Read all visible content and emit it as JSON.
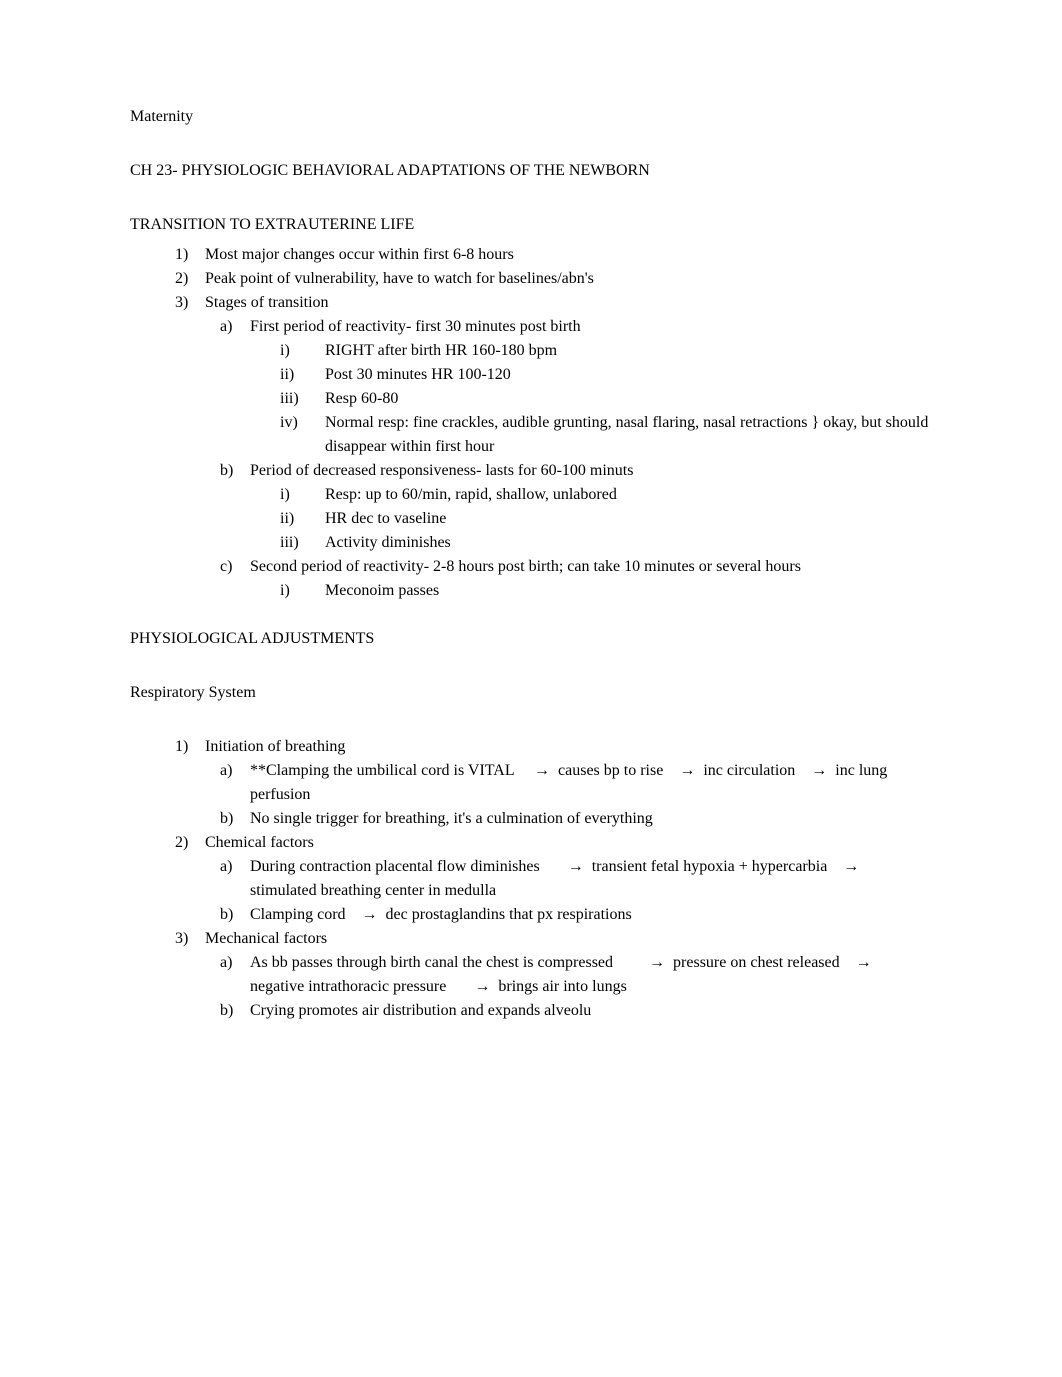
{
  "header": {
    "course": "Maternity",
    "chapter_title": "CH 23- PHYSIOLOGIC BEHAVIORAL ADAPTATIONS OF THE NEWBORN"
  },
  "section1": {
    "title": "TRANSITION TO EXTRAUTERINE LIFE",
    "items": [
      {
        "m": "1)",
        "t": "Most major changes occur within first 6-8 hours"
      },
      {
        "m": "2)",
        "t": "Peak point of vulnerability, have to watch for baselines/abn's"
      },
      {
        "m": "3)",
        "t": "Stages of transition"
      }
    ],
    "i3_sub": [
      {
        "m": "a)",
        "t": "First period of reactivity- first 30 minutes post birth"
      }
    ],
    "i3a_sub": [
      {
        "m": "i)",
        "t": "RIGHT after birth HR 160-180 bpm"
      },
      {
        "m": "ii)",
        "t": "Post 30 minutes HR 100-120"
      },
      {
        "m": "iii)",
        "t": "Resp 60-80"
      },
      {
        "m": "iv)",
        "t": "Normal resp: fine crackles, audible grunting, nasal flaring, nasal retractions } okay, but should disappear within first hour"
      }
    ],
    "i3_sub2": [
      {
        "m": "b)",
        "t": "Period of decreased responsiveness- lasts for 60-100 minuts"
      }
    ],
    "i3b_sub": [
      {
        "m": "i)",
        "t": "Resp: up to 60/min, rapid, shallow, unlabored"
      },
      {
        "m": "ii)",
        "t": "HR dec to vaseline"
      },
      {
        "m": "iii)",
        "t": "Activity diminishes"
      }
    ],
    "i3_sub3": [
      {
        "m": "c)",
        "t": "Second period of reactivity- 2-8 hours post birth; can take 10 minutes or several hours"
      }
    ],
    "i3c_sub": [
      {
        "m": "i)",
        "t": "Meconoim passes"
      }
    ]
  },
  "section2": {
    "title": "PHYSIOLOGICAL ADJUSTMENTS",
    "subtitle": "Respiratory System",
    "items": [
      {
        "m": "1)",
        "t": "Initiation of breathing"
      }
    ],
    "i1_sub_a_parts": {
      "m": "a)",
      "p1": "**Clamping the umbilical cord is VITAL",
      "p2": "causes bp to rise",
      "p3": "inc circulation",
      "p4": "inc lung perfusion"
    },
    "i1_sub_b": {
      "m": "b)",
      "t": "No single trigger for breathing, it's a culmination of everything"
    },
    "items2": [
      {
        "m": "2)",
        "t": "Chemical factors"
      }
    ],
    "i2_sub_a_parts": {
      "m": "a)",
      "p1": "During contraction placental flow diminishes",
      "p2": "transient fetal hypoxia + hypercarbia",
      "p3": "stimulated breathing center in medulla"
    },
    "i2_sub_b_parts": {
      "m": "b)",
      "p1": "Clamping cord",
      "p2": "dec prostaglandins that px respirations"
    },
    "items3": [
      {
        "m": "3)",
        "t": "Mechanical factors"
      }
    ],
    "i3_sub_a_parts": {
      "m": "a)",
      "p1": "As bb passes through birth canal the chest is compressed",
      "p2": "pressure on chest released",
      "p3": "negative intrathoracic pressure",
      "p4": "brings air into lungs"
    },
    "i3_sub_b": {
      "m": "b)",
      "t": "Crying promotes air distribution and expands alveolu"
    }
  },
  "arrow": "→"
}
